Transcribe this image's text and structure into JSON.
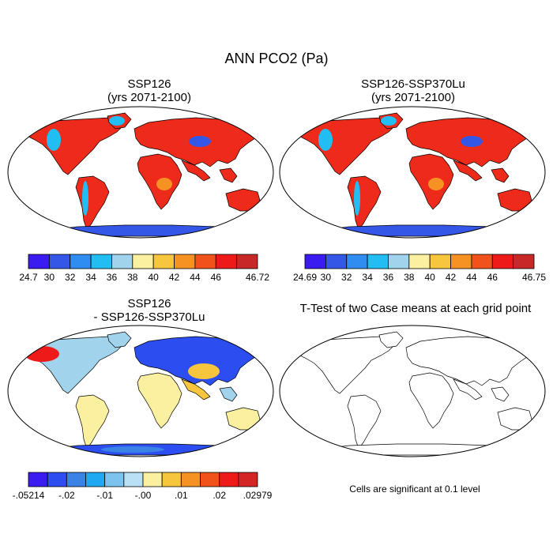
{
  "figure_title": "ANN PCO2 (Pa)",
  "panels": [
    {
      "title": "SSP126",
      "subtitle": "(yrs 2071-2100)",
      "kind": "absolute"
    },
    {
      "title": "SSP126-SSP370Lu",
      "subtitle": "(yrs 2071-2100)",
      "kind": "absolute"
    },
    {
      "title": "SSP126",
      "subtitle": "- SSP126-SSP370Lu",
      "kind": "difference"
    },
    {
      "title": "T-Test of two Case means at each grid point",
      "subtitle": "",
      "kind": "ttest"
    }
  ],
  "colorbars": [
    {
      "colors": [
        "#3a1cf0",
        "#3557e8",
        "#2f8cf0",
        "#22bdf2",
        "#a2d3ec",
        "#fbf0a0",
        "#f8c63c",
        "#f69224",
        "#f1521c",
        "#ee1a1a",
        "#c92828"
      ],
      "labels": [
        "24.7",
        "30",
        "32",
        "34",
        "36",
        "38",
        "40",
        "42",
        "44",
        "46",
        "46.72"
      ]
    },
    {
      "colors": [
        "#3a1cf0",
        "#3557e8",
        "#2f8cf0",
        "#22bdf2",
        "#a2d3ec",
        "#fbf0a0",
        "#f8c63c",
        "#f69224",
        "#f1521c",
        "#ee1a1a",
        "#c92828"
      ],
      "labels": [
        "24.69",
        "30",
        "32",
        "34",
        "36",
        "38",
        "40",
        "42",
        "44",
        "46",
        "46.75"
      ]
    },
    {
      "colors": [
        "#3a1cf0",
        "#2c4ef0",
        "#3a82e6",
        "#1fa9f2",
        "#7cc4ee",
        "#b9e0f4",
        "#fbf0a0",
        "#f8c63c",
        "#f69224",
        "#f1521c",
        "#ee1a1a",
        "#d42424"
      ],
      "labels": [
        "-.05214",
        "-.02",
        "-.01",
        "-.00",
        ".01",
        ".02",
        ".02979"
      ]
    }
  ],
  "ttest_note": "Cells are significant at 0.1 level",
  "map_colors": {
    "panel_1": {
      "land": "#ee2a1a",
      "accent": "#f69224",
      "cold": "#3557e8",
      "mid": "#22bdf2"
    },
    "panel_2": {
      "land": "#ee2a1a",
      "accent": "#f69224",
      "cold": "#3557e8",
      "mid": "#22bdf2"
    },
    "panel_3": {
      "land": "#a2d3ec",
      "warm": "#fbf0a0",
      "hot": "#f8c63c",
      "cold": "#2c4ef0",
      "red": "#ee1a1a"
    },
    "panel_4": {
      "land": "#ffffff"
    }
  }
}
